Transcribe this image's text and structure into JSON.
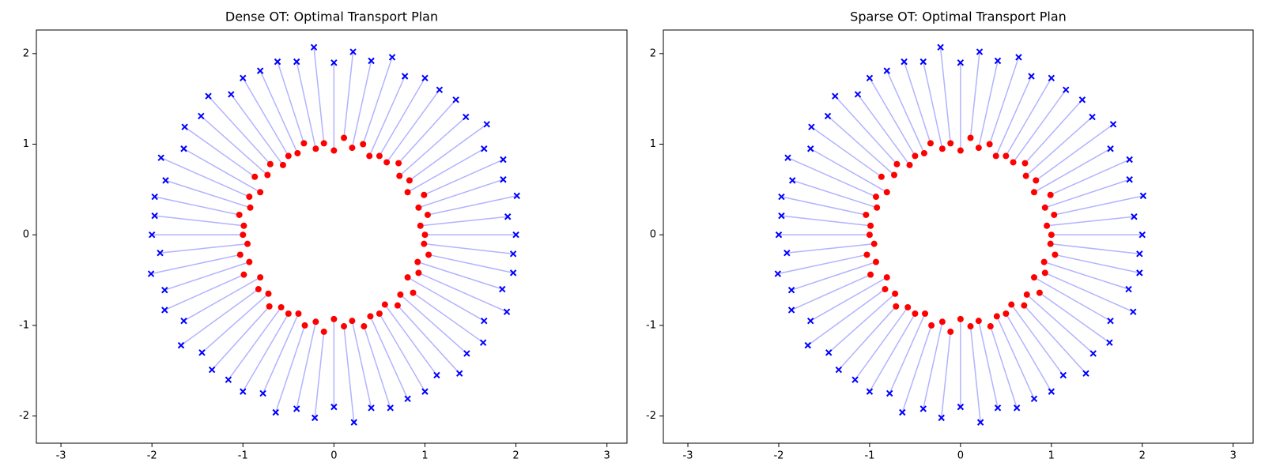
{
  "chart_data": [
    {
      "type": "scatter",
      "title": "Dense OT: Optimal Transport Plan",
      "xlim": [
        -3.27,
        3.22
      ],
      "ylim": [
        -2.3,
        2.26
      ],
      "xticks": [
        -3,
        -2,
        -1,
        0,
        1,
        2,
        3
      ],
      "yticks": [
        -2,
        -1,
        0,
        1,
        2
      ],
      "link_color": "#0000ff",
      "link_alpha": 0.3,
      "series": [
        {
          "color": "#ff0000",
          "marker": "o",
          "x": [
            1.0,
            0.95,
            1.03,
            0.93,
            0.99,
            0.81,
            0.83,
            0.72,
            0.71,
            0.58,
            0.5,
            0.39,
            0.32,
            0.2,
            0.11,
            0,
            -0.11,
            -0.2,
            -0.33,
            -0.4,
            -0.5,
            -0.56,
            -0.7,
            -0.73,
            -0.87,
            -0.81,
            -0.93,
            -0.92,
            -1.04,
            -0.99,
            -1.0,
            -0.95,
            -1.03,
            -0.93,
            -0.99,
            -0.81,
            -0.83,
            -0.72,
            -0.71,
            -0.58,
            -0.5,
            -0.39,
            -0.32,
            -0.2,
            -0.11,
            0,
            0.11,
            0.2,
            0.33,
            0.4,
            0.5,
            0.56,
            0.7,
            0.73,
            0.87,
            0.81,
            0.93,
            0.92,
            1.04,
            0.99
          ],
          "y": [
            0,
            0.1,
            0.22,
            0.3,
            0.44,
            0.47,
            0.6,
            0.65,
            0.79,
            0.8,
            0.87,
            0.87,
            1.0,
            0.96,
            1.07,
            0.93,
            1.01,
            0.95,
            1.01,
            0.9,
            0.87,
            0.77,
            0.78,
            0.66,
            0.64,
            0.47,
            0.42,
            0.3,
            0.22,
            0.1,
            0,
            -0.1,
            -0.22,
            -0.3,
            -0.44,
            -0.47,
            -0.6,
            -0.65,
            -0.79,
            -0.8,
            -0.87,
            -0.87,
            -1.0,
            -0.96,
            -1.07,
            -0.93,
            -1.01,
            -0.95,
            -1.01,
            -0.9,
            -0.87,
            -0.77,
            -0.78,
            -0.66,
            -0.64,
            -0.47,
            -0.42,
            -0.3,
            -0.22,
            -0.1
          ]
        },
        {
          "color": "#0000ff",
          "marker": "x",
          "x": [
            2.0,
            1.91,
            2.01,
            1.86,
            1.86,
            1.65,
            1.68,
            1.45,
            1.34,
            1.16,
            1.0,
            0.78,
            0.64,
            0.41,
            0.21,
            0,
            -0.22,
            -0.41,
            -0.62,
            -0.81,
            -1.0,
            -1.13,
            -1.38,
            -1.46,
            -1.64,
            -1.65,
            -1.9,
            -1.85,
            -1.97,
            -1.97,
            -2.0,
            -1.91,
            -2.01,
            -1.86,
            -1.86,
            -1.65,
            -1.68,
            -1.45,
            -1.34,
            -1.16,
            -1.0,
            -0.78,
            -0.64,
            -0.41,
            -0.21,
            0,
            0.22,
            0.41,
            0.62,
            0.81,
            1.0,
            1.13,
            1.38,
            1.46,
            1.64,
            1.65,
            1.9,
            1.85,
            1.97,
            1.97
          ],
          "y": [
            0,
            0.2,
            0.43,
            0.61,
            0.83,
            0.95,
            1.22,
            1.3,
            1.49,
            1.6,
            1.73,
            1.75,
            1.96,
            1.92,
            2.02,
            1.9,
            2.07,
            1.91,
            1.91,
            1.81,
            1.73,
            1.55,
            1.53,
            1.31,
            1.19,
            0.95,
            0.85,
            0.6,
            0.42,
            0.21,
            0,
            -0.2,
            -0.43,
            -0.61,
            -0.83,
            -0.95,
            -1.22,
            -1.3,
            -1.49,
            -1.6,
            -1.73,
            -1.75,
            -1.96,
            -1.92,
            -2.02,
            -1.9,
            -2.07,
            -1.91,
            -1.91,
            -1.81,
            -1.73,
            -1.55,
            -1.53,
            -1.31,
            -1.19,
            -0.95,
            -0.85,
            -0.6,
            -0.42,
            -0.21
          ]
        }
      ]
    },
    {
      "type": "scatter",
      "title": "Sparse OT: Optimal Transport Plan",
      "xlim": [
        -3.27,
        3.22
      ],
      "ylim": [
        -2.3,
        2.26
      ],
      "xticks": [
        -3,
        -2,
        -1,
        0,
        1,
        2,
        3
      ],
      "yticks": [
        -2,
        -1,
        0,
        1,
        2
      ],
      "link_color": "#0000ff",
      "link_alpha": 0.3,
      "series": [
        {
          "color": "#ff0000",
          "marker": "o",
          "x": [
            1.0,
            0.95,
            1.03,
            0.93,
            0.99,
            0.81,
            0.83,
            0.72,
            0.71,
            0.58,
            0.5,
            0.39,
            0.32,
            0.2,
            0.11,
            0,
            -0.11,
            -0.2,
            -0.33,
            -0.4,
            -0.5,
            -0.56,
            -0.7,
            -0.73,
            -0.87,
            -0.81,
            -0.93,
            -0.92,
            -1.04,
            -0.99,
            -1.0,
            -0.95,
            -1.03,
            -0.93,
            -0.99,
            -0.81,
            -0.83,
            -0.72,
            -0.71,
            -0.58,
            -0.5,
            -0.39,
            -0.32,
            -0.2,
            -0.11,
            0,
            0.11,
            0.2,
            0.33,
            0.4,
            0.5,
            0.56,
            0.7,
            0.73,
            0.87,
            0.81,
            0.93,
            0.92,
            1.04,
            0.99
          ],
          "y": [
            0,
            0.1,
            0.22,
            0.3,
            0.44,
            0.47,
            0.6,
            0.65,
            0.79,
            0.8,
            0.87,
            0.87,
            1.0,
            0.96,
            1.07,
            0.93,
            1.01,
            0.95,
            1.01,
            0.9,
            0.87,
            0.77,
            0.78,
            0.66,
            0.64,
            0.47,
            0.42,
            0.3,
            0.22,
            0.1,
            0,
            -0.1,
            -0.22,
            -0.3,
            -0.44,
            -0.47,
            -0.6,
            -0.65,
            -0.79,
            -0.8,
            -0.87,
            -0.87,
            -1.0,
            -0.96,
            -1.07,
            -0.93,
            -1.01,
            -0.95,
            -1.01,
            -0.9,
            -0.87,
            -0.77,
            -0.78,
            -0.66,
            -0.64,
            -0.47,
            -0.42,
            -0.3,
            -0.22,
            -0.1
          ]
        },
        {
          "color": "#0000ff",
          "marker": "x",
          "x": [
            2.0,
            1.91,
            2.01,
            1.86,
            1.86,
            1.65,
            1.68,
            1.45,
            1.34,
            1.16,
            1.0,
            0.78,
            0.64,
            0.41,
            0.21,
            0,
            -0.22,
            -0.41,
            -0.62,
            -0.81,
            -1.0,
            -1.13,
            -1.38,
            -1.46,
            -1.64,
            -1.65,
            -1.9,
            -1.85,
            -1.97,
            -1.97,
            -2.0,
            -1.91,
            -2.01,
            -1.86,
            -1.86,
            -1.65,
            -1.68,
            -1.45,
            -1.34,
            -1.16,
            -1.0,
            -0.78,
            -0.64,
            -0.41,
            -0.21,
            0,
            0.22,
            0.41,
            0.62,
            0.81,
            1.0,
            1.13,
            1.38,
            1.46,
            1.64,
            1.65,
            1.9,
            1.85,
            1.97,
            1.97
          ],
          "y": [
            0,
            0.2,
            0.43,
            0.61,
            0.83,
            0.95,
            1.22,
            1.3,
            1.49,
            1.6,
            1.73,
            1.75,
            1.96,
            1.92,
            2.02,
            1.9,
            2.07,
            1.91,
            1.91,
            1.81,
            1.73,
            1.55,
            1.53,
            1.31,
            1.19,
            0.95,
            0.85,
            0.6,
            0.42,
            0.21,
            0,
            -0.2,
            -0.43,
            -0.61,
            -0.83,
            -0.95,
            -1.22,
            -1.3,
            -1.49,
            -1.6,
            -1.73,
            -1.75,
            -1.96,
            -1.92,
            -2.02,
            -1.9,
            -2.07,
            -1.91,
            -1.91,
            -1.81,
            -1.73,
            -1.55,
            -1.53,
            -1.31,
            -1.19,
            -0.95,
            -0.85,
            -0.6,
            -0.42,
            -0.21
          ]
        }
      ]
    }
  ]
}
